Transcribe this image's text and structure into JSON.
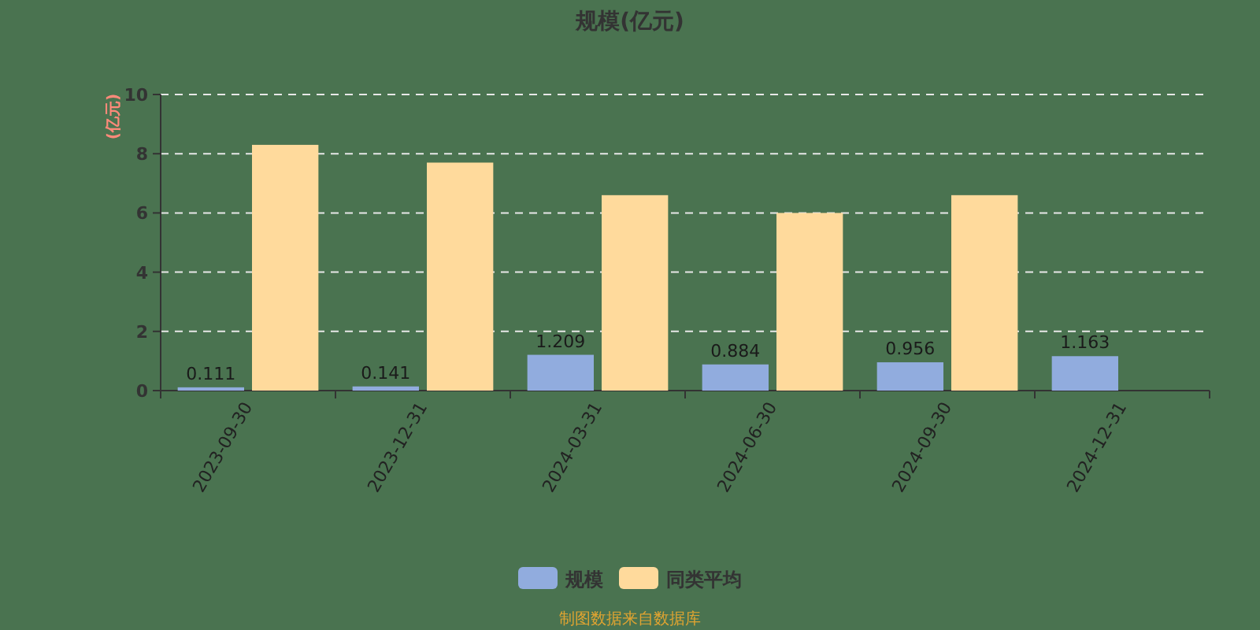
{
  "chart_data": {
    "type": "bar",
    "title": "规模(亿元)",
    "ylabel": "(亿元)",
    "categories": [
      "2023-09-30",
      "2023-12-31",
      "2024-03-31",
      "2024-06-30",
      "2024-09-30",
      "2024-12-31"
    ],
    "series": [
      {
        "name": "规模",
        "color": "#91acde",
        "values": [
          0.111,
          0.141,
          1.209,
          0.884,
          0.956,
          1.163
        ],
        "value_labels": [
          "0.111",
          "0.141",
          "1.209",
          "0.884",
          "0.956",
          "1.163"
        ]
      },
      {
        "name": "同类平均",
        "color": "#ffda9c",
        "values": [
          8.3,
          7.7,
          6.6,
          6.0,
          6.6,
          null
        ]
      }
    ],
    "ylim": [
      0,
      10
    ],
    "yticks": [
      0,
      2,
      4,
      6,
      8,
      10
    ],
    "grid": "y",
    "legend": "bottom",
    "annotations": [
      "制图数据来自数据库"
    ]
  }
}
